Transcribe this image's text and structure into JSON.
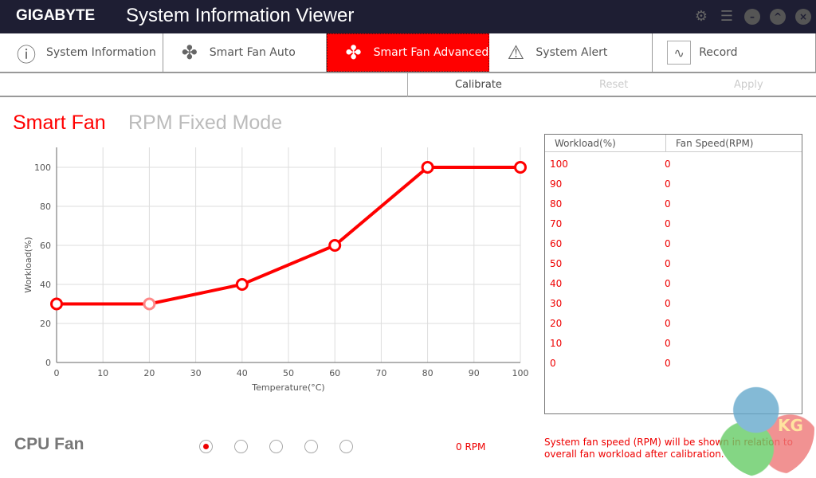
{
  "app": {
    "brand": "GIGABYTE",
    "title": "System Information Viewer"
  },
  "tabs": [
    {
      "label": "System Information",
      "icon": "info-icon"
    },
    {
      "label": "Smart Fan Auto",
      "icon": "fan-icon"
    },
    {
      "label": "Smart Fan Advanced",
      "icon": "fan-icon",
      "active": true
    },
    {
      "label": "System Alert",
      "icon": "warning-icon"
    },
    {
      "label": "Record",
      "icon": "pulse-icon"
    }
  ],
  "toolbar": {
    "calibrate": "Calibrate",
    "reset": "Reset",
    "apply": "Apply"
  },
  "modes": {
    "smart_fan": "Smart Fan",
    "rpm_fixed": "RPM Fixed Mode"
  },
  "table": {
    "headers": [
      "Workload(%)",
      "Fan Speed(RPM)"
    ],
    "rows": [
      [
        "100",
        "0"
      ],
      [
        "90",
        "0"
      ],
      [
        "80",
        "0"
      ],
      [
        "70",
        "0"
      ],
      [
        "60",
        "0"
      ],
      [
        "50",
        "0"
      ],
      [
        "40",
        "0"
      ],
      [
        "30",
        "0"
      ],
      [
        "20",
        "0"
      ],
      [
        "10",
        "0"
      ],
      [
        "0",
        "0"
      ]
    ]
  },
  "fan": {
    "name": "CPU Fan",
    "rpm": "0 RPM",
    "selected_index": 0,
    "count": 5
  },
  "note": "System fan speed (RPM) will be shown in relation to overall fan workload after calibration.",
  "watermark": "KG",
  "chart_data": {
    "type": "line",
    "xlabel": "Temperature(°C)",
    "ylabel": "Workload(%)",
    "xlim": [
      0,
      100
    ],
    "ylim": [
      0,
      100
    ],
    "xticks": [
      0,
      10,
      20,
      30,
      40,
      50,
      60,
      70,
      80,
      90,
      100
    ],
    "yticks": [
      0,
      20,
      40,
      60,
      80,
      100
    ],
    "grid": true,
    "color": "#ff0000",
    "points": [
      [
        0,
        30
      ],
      [
        20,
        30
      ],
      [
        40,
        40
      ],
      [
        60,
        60
      ],
      [
        80,
        100
      ],
      [
        100,
        100
      ]
    ]
  }
}
